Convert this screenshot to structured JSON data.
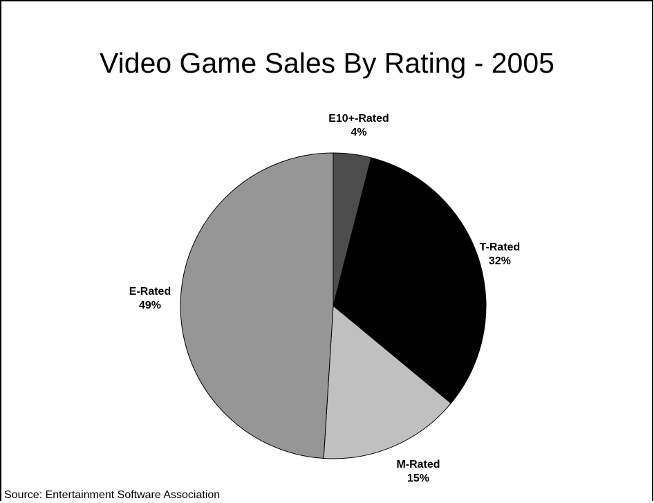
{
  "title": "Video Game Sales By Rating - 2005",
  "source": "Source: Entertainment Software Association",
  "chart_data": {
    "type": "pie",
    "title": "Video Game Sales By Rating - 2005",
    "start_angle_deg": 0,
    "direction": "clockwise",
    "slices": [
      {
        "label": "E10+-Rated",
        "value": 4,
        "value_label": "4%",
        "color": "#4d4d4d"
      },
      {
        "label": "T-Rated",
        "value": 32,
        "value_label": "32%",
        "color": "#000000"
      },
      {
        "label": "M-Rated",
        "value": 15,
        "value_label": "15%",
        "color": "#c0c0c0"
      },
      {
        "label": "E-Rated",
        "value": 49,
        "value_label": "49%",
        "color": "#969696"
      }
    ]
  }
}
